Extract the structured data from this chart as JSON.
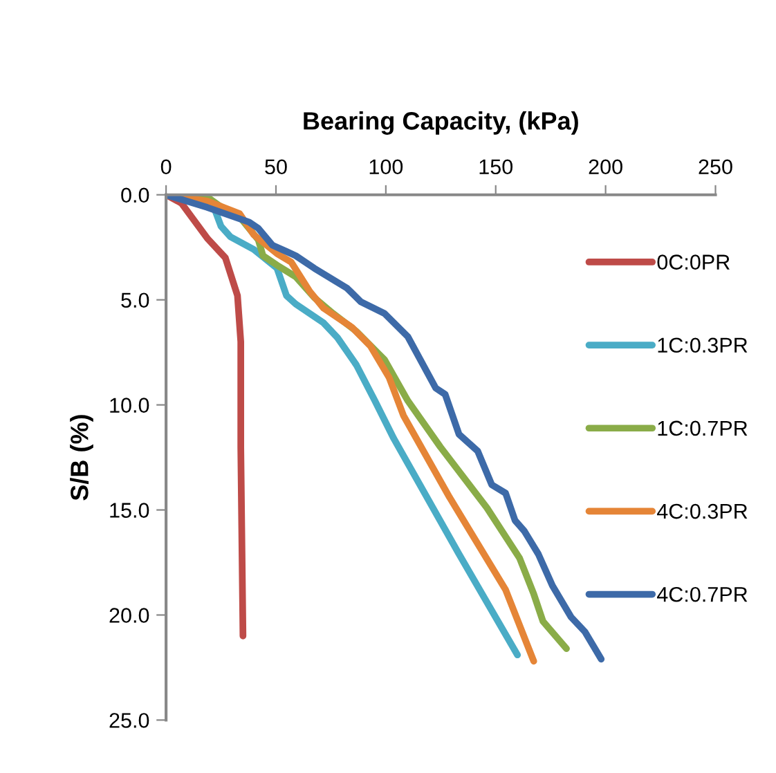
{
  "chart_data": {
    "type": "line",
    "title": "Bearing Capacity, (kPa)",
    "ylabel": "S/B (%)",
    "xlim": [
      0,
      250
    ],
    "xticks": [
      0,
      50,
      100,
      150,
      200,
      250
    ],
    "ylim": [
      25,
      0
    ],
    "yticks": [
      {
        "value": 0,
        "label": "0.0"
      },
      {
        "value": 5,
        "label": "5.0"
      },
      {
        "value": 10,
        "label": "10.0"
      },
      {
        "value": 15,
        "label": "15.0"
      },
      {
        "value": 20,
        "label": "20.0"
      },
      {
        "value": 25,
        "label": "25.0"
      }
    ],
    "grid": false,
    "legend": "right",
    "marker": "none",
    "line_style": "solid",
    "series": [
      {
        "name": "0C:0PR",
        "color": "#be4b48",
        "x": [
          0,
          7,
          19,
          27,
          32.5,
          34,
          34,
          35
        ],
        "values": [
          0,
          0.4,
          2.1,
          3,
          4.8,
          7,
          12,
          21
        ]
      },
      {
        "name": "1C:0.3PR",
        "color": "#4aacc6",
        "x": [
          0,
          21.8,
          25,
          29.3,
          39.9,
          50.5,
          54.8,
          59,
          71.7,
          78,
          86.6,
          95,
          103.6,
          133.3,
          159.9
        ],
        "values": [
          0,
          0.6,
          1.5,
          2,
          2.6,
          3.5,
          4.8,
          5.2,
          6.1,
          6.8,
          8.1,
          9.8,
          11.6,
          17.1,
          21.9
        ]
      },
      {
        "name": "1C:0.7PR",
        "color": "#8aac48",
        "x": [
          0,
          18.7,
          24,
          33.5,
          42,
          44.1,
          50.5,
          59,
          67.5,
          76,
          86.6,
          99.4,
          110,
          124.8,
          146,
          160.9,
          167.3,
          171.5,
          182.2
        ],
        "values": [
          0,
          0.1,
          0.5,
          1.05,
          2.15,
          2.9,
          3.35,
          3.9,
          4.9,
          5.65,
          6.5,
          7.85,
          9.8,
          12,
          14.9,
          17.3,
          19,
          20.3,
          21.6
        ]
      },
      {
        "name": "4C:0.3PR",
        "color": "#e58537",
        "x": [
          0,
          18.7,
          33.5,
          39.9,
          50.5,
          56.9,
          65.4,
          71.7,
          84.5,
          93,
          101.5,
          108,
          129,
          154.5,
          167.3
        ],
        "values": [
          0,
          0.3,
          0.9,
          1.9,
          2.8,
          3.2,
          4.6,
          5.4,
          6.3,
          7.2,
          8.7,
          10.5,
          14.4,
          18.8,
          22.2
        ]
      },
      {
        "name": "4C:0.7PR",
        "color": "#3d6aa8",
        "x": [
          0,
          18.7,
          37.8,
          42,
          48.4,
          54.8,
          59,
          67.5,
          82.4,
          88.7,
          99.4,
          110,
          122.7,
          127,
          133.3,
          141.8,
          148.2,
          154.5,
          158.8,
          163,
          169.4,
          175.8,
          184.3,
          190.6,
          198
        ],
        "values": [
          0,
          0.6,
          1.3,
          1.6,
          2.4,
          2.7,
          2.9,
          3.5,
          4.45,
          5.1,
          5.65,
          6.75,
          9.2,
          9.5,
          11.4,
          12.2,
          13.8,
          14.2,
          15.5,
          16,
          17.1,
          18.6,
          20.1,
          20.8,
          22.1
        ]
      }
    ]
  }
}
